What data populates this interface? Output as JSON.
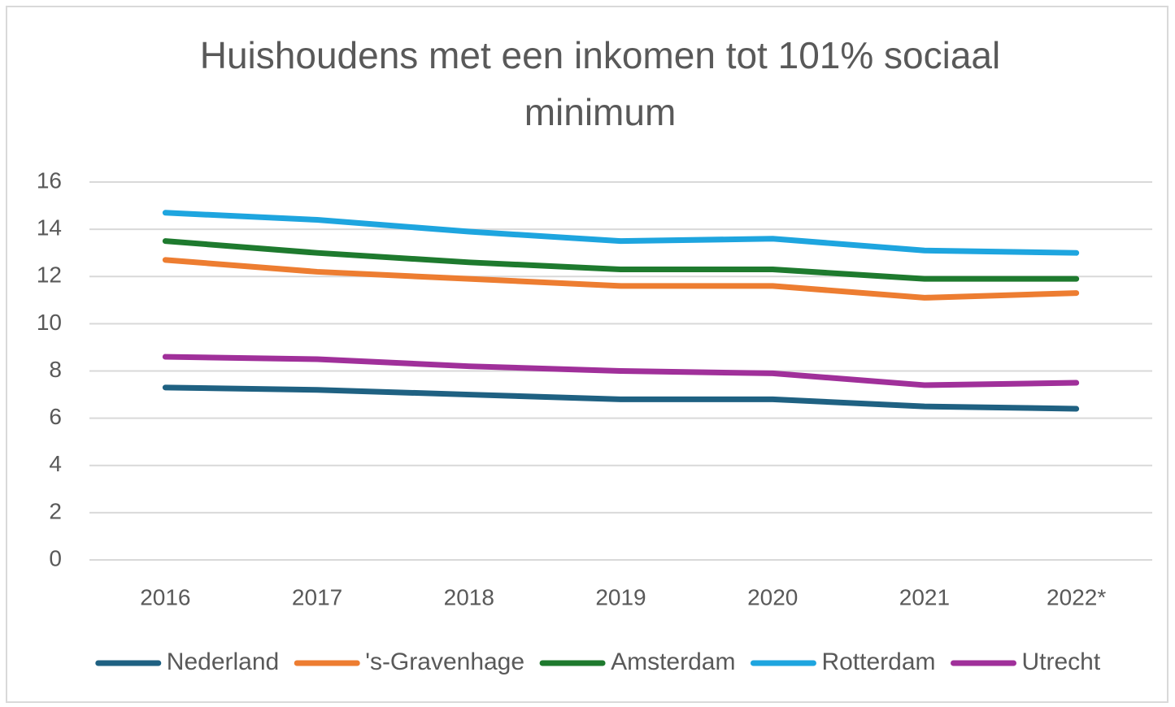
{
  "chart_data": {
    "type": "line",
    "title": "Huishoudens met een inkomen tot 101% sociaal minimum",
    "categories": [
      "2016",
      "2017",
      "2018",
      "2019",
      "2020",
      "2021",
      "2022*"
    ],
    "series": [
      {
        "name": "Nederland",
        "color": "#1f6182",
        "values": [
          7.3,
          7.2,
          7.0,
          6.8,
          6.8,
          6.5,
          6.4
        ]
      },
      {
        "name": "'s-Gravenhage",
        "color": "#ed7d31",
        "values": [
          12.7,
          12.2,
          11.9,
          11.6,
          11.6,
          11.1,
          11.3
        ]
      },
      {
        "name": "Amsterdam",
        "color": "#1e7a2e",
        "values": [
          13.5,
          13.0,
          12.6,
          12.3,
          12.3,
          11.9,
          11.9
        ]
      },
      {
        "name": "Rotterdam",
        "color": "#1ea5df",
        "values": [
          14.7,
          14.4,
          13.9,
          13.5,
          13.6,
          13.1,
          13.0
        ]
      },
      {
        "name": "Utrecht",
        "color": "#a0309a",
        "values": [
          8.6,
          8.5,
          8.2,
          8.0,
          7.9,
          7.4,
          7.5
        ]
      }
    ],
    "ylim": [
      0,
      16
    ],
    "yticks": [
      0,
      2,
      4,
      6,
      8,
      10,
      12,
      14,
      16
    ],
    "grid": true,
    "legend": "bottom"
  }
}
